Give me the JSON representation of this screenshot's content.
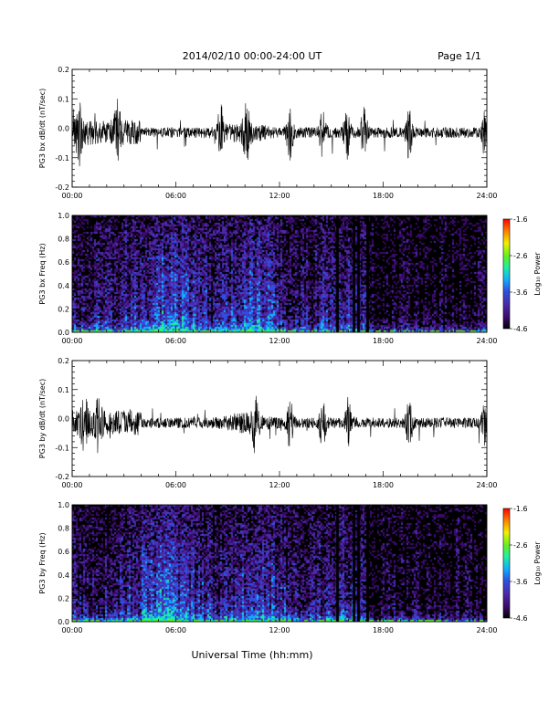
{
  "header": {
    "title": "2014/02/10  00:00-24:00 UT",
    "page": "Page 1/1"
  },
  "footer": {
    "xlabel": "Universal Time (hh:mm)"
  },
  "colors": {
    "trace": "#000000",
    "spectrogram_scale": [
      "#000000",
      "#3a0a6a",
      "#4a2aaa",
      "#2f4fe0",
      "#10b0ff",
      "#20f0a0",
      "#60f020",
      "#f0f000",
      "#ff8000",
      "#ff0000"
    ]
  },
  "chart_data": [
    {
      "type": "line",
      "id": "pg3-bx-dbdt",
      "ylabel": "PG3 bx dB/dt (nT/sec)",
      "xlim": [
        0,
        24
      ],
      "ylim": [
        -0.2,
        0.2
      ],
      "xticks": [
        "00:00",
        "06:00",
        "12:00",
        "18:00",
        "24:00"
      ],
      "yticks": [
        "-0.2",
        "-0.1",
        "0.0",
        "0.1",
        "0.2"
      ],
      "activity_hours": [
        0.4,
        2.6,
        8.6,
        10.1,
        12.6,
        14.5,
        15.9,
        16.9,
        19.5,
        23.9
      ],
      "approx_peak_amplitude": 0.13
    },
    {
      "type": "heatmap",
      "id": "pg3-bx-freq",
      "ylabel": "PG3 bx Freq (Hz)",
      "xlim": [
        0,
        24
      ],
      "ylim": [
        0,
        1.0
      ],
      "xticks": [
        "00:00",
        "06:00",
        "12:00",
        "18:00",
        "24:00"
      ],
      "yticks": [
        "0.0",
        "0.2",
        "0.4",
        "0.6",
        "0.8",
        "1.0"
      ],
      "colorbar": {
        "label": "Log₁₀ Power",
        "range": [
          -4.6,
          -1.6
        ],
        "ticks": [
          "-1.6",
          "-2.6",
          "-3.6",
          "-4.6"
        ]
      },
      "data_gaps_hours": [
        15.35,
        16.3,
        16.55,
        17.1
      ]
    },
    {
      "type": "line",
      "id": "pg3-by-dbdt",
      "ylabel": "PG3 by dB/dt (nT/sec)",
      "xlim": [
        0,
        24
      ],
      "ylim": [
        -0.2,
        0.2
      ],
      "xticks": [
        "00:00",
        "06:00",
        "12:00",
        "18:00",
        "24:00"
      ],
      "yticks": [
        "-0.2",
        "-0.1",
        "0.0",
        "0.1",
        "0.2"
      ],
      "activity_hours": [
        0.7,
        1.5,
        10.6,
        12.6,
        14.5,
        16.0,
        19.5,
        23.9
      ],
      "approx_peak_amplitude": 0.13
    },
    {
      "type": "heatmap",
      "id": "pg3-by-freq",
      "ylabel": "PG3 by Freq (Hz)",
      "xlim": [
        0,
        24
      ],
      "ylim": [
        0,
        1.0
      ],
      "xticks": [
        "00:00",
        "06:00",
        "12:00",
        "18:00",
        "24:00"
      ],
      "yticks": [
        "0.0",
        "0.2",
        "0.4",
        "0.6",
        "0.8",
        "1.0"
      ],
      "colorbar": {
        "label": "Log₁₀ Power",
        "range": [
          -4.6,
          -1.6
        ],
        "ticks": [
          "-1.6",
          "-2.6",
          "-3.6",
          "-4.6"
        ]
      },
      "data_gaps_hours": [
        15.35,
        16.3,
        16.55,
        17.1
      ]
    }
  ]
}
